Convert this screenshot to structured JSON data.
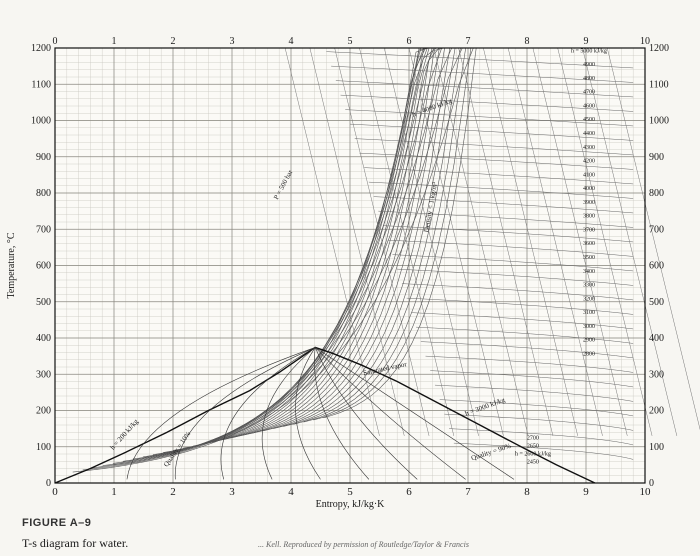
{
  "figure": {
    "label": "FIGURE A–9",
    "caption": "T-s diagram for water.",
    "credit": "... Kell. Reproduced by permission of Routledge/Taylor & Francis"
  },
  "chart_data": {
    "type": "line",
    "title": "",
    "xlabel": "Entropy, kJ/kg·K",
    "ylabel": "Temperature, °C",
    "xlim": [
      0,
      10
    ],
    "ylim": [
      0,
      1200
    ],
    "x_ticks": [
      "0",
      "1",
      "2",
      "3",
      "4",
      "5",
      "6",
      "7",
      "8",
      "9",
      "10"
    ],
    "y_ticks": [
      "0",
      "100",
      "200",
      "300",
      "400",
      "500",
      "600",
      "700",
      "800",
      "900",
      "1000",
      "1100",
      "1200"
    ],
    "grid": true,
    "saturation_dome": {
      "x": [
        0.0,
        0.6,
        1.2,
        1.9,
        2.6,
        3.3,
        3.8,
        4.2,
        4.41,
        4.7,
        5.2,
        5.8,
        6.5,
        7.2,
        7.9,
        8.5,
        9.15
      ],
      "y": [
        0,
        40,
        85,
        140,
        200,
        255,
        305,
        350,
        374,
        358,
        325,
        280,
        220,
        160,
        100,
        50,
        0
      ]
    },
    "enthalpy_labels": [
      "h = 5000 kJ/kg",
      "4900",
      "4800",
      "4700",
      "4600",
      "4500",
      "4400",
      "4300",
      "4200",
      "4100",
      "4000",
      "3900",
      "3800",
      "3700",
      "3600",
      "3500",
      "3400",
      "3300",
      "3200",
      "3100",
      "3000",
      "2900",
      "2800",
      "2700",
      "2650",
      "h = 2600 kJ/kg",
      "2450"
    ],
    "annotations": [
      "Saturated vapor",
      "Quality = 90%",
      "Quality = 10%",
      "P = 500 bar",
      "Density = 1 kg/m³",
      "h = 4000 kJ/kg",
      "h = 3000 kJ/kg",
      "h = 200 kJ/kg"
    ]
  }
}
